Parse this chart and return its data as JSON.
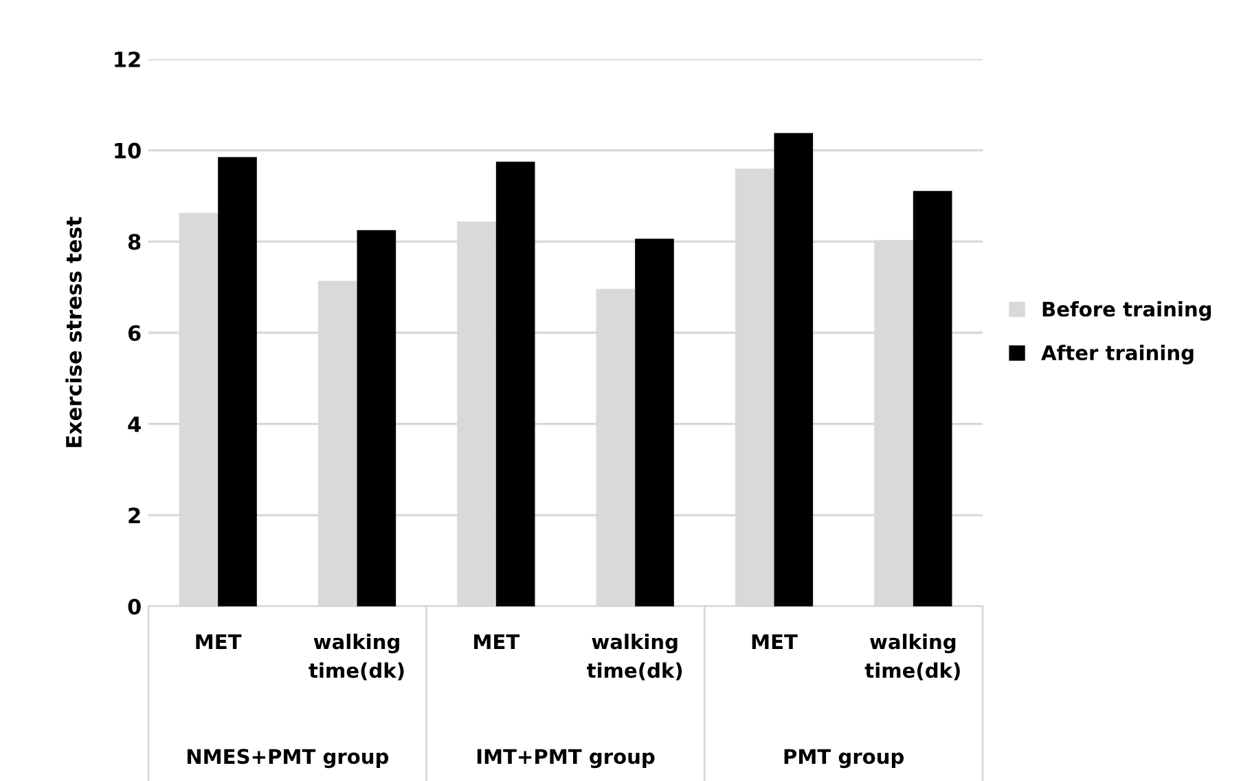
{
  "chart_data": {
    "type": "bar",
    "ylabel": "Exercise stress test",
    "categories": [
      "MET",
      "walking time(dk)",
      "MET",
      "walking time(dk)",
      "MET",
      "walking time(dk)"
    ],
    "annotations": [
      "NMES+PMT group",
      "IMT+PMT group",
      "PMT group"
    ],
    "series": [
      {
        "name": "Before training",
        "color": "#d9d9d9",
        "values": [
          8.63,
          7.14,
          8.44,
          6.96,
          9.6,
          8.03
        ]
      },
      {
        "name": "After training",
        "color": "#000000",
        "values": [
          9.85,
          8.25,
          9.75,
          8.06,
          10.38,
          9.11
        ]
      }
    ],
    "ylim": [
      0,
      12
    ],
    "yticks": [
      0,
      2,
      4,
      6,
      8,
      10,
      12
    ],
    "grid": "y",
    "legend": "right"
  }
}
